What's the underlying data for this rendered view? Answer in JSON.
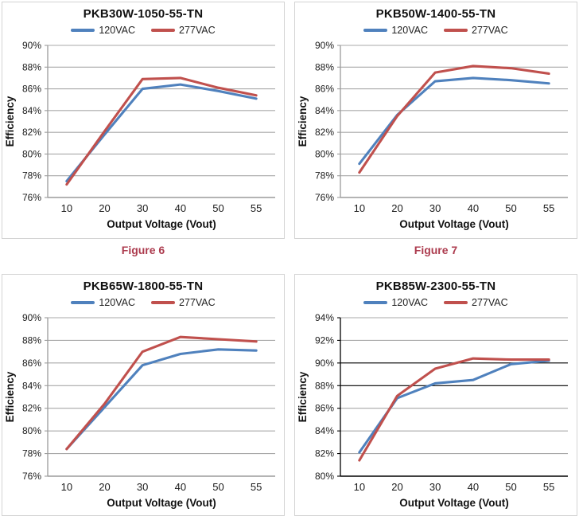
{
  "caption_color": "#AC3B4E",
  "figure_captions": [
    {
      "label": "Figure 6"
    },
    {
      "label": "Figure 7"
    }
  ],
  "chart_data": [
    {
      "type": "line",
      "title": "PKB30W-1050-55-TN",
      "xlabel": "Output Voltage (Vout)",
      "ylabel": "Efficiency",
      "categories": [
        "10",
        "20",
        "30",
        "40",
        "50",
        "55"
      ],
      "ylim": [
        76,
        90
      ],
      "ytick_step": 2,
      "ytick_suffix": "%",
      "grid": "horizontal",
      "legend_position": "top",
      "grid_color": "#A8A8A8",
      "axis_color": "#9C9C9C",
      "emphasized_gridlines": [],
      "emphasis_color": "#000000",
      "series": [
        {
          "name": "120VAC",
          "color": "#4F81BD",
          "values": [
            77.5,
            81.8,
            86.0,
            86.4,
            85.8,
            85.1
          ]
        },
        {
          "name": "277VAC",
          "color": "#C0504D",
          "values": [
            77.2,
            82.1,
            86.9,
            87.0,
            86.1,
            85.4
          ]
        }
      ]
    },
    {
      "type": "line",
      "title": "PKB50W-1400-55-TN",
      "xlabel": "Output Voltage (Vout)",
      "ylabel": "Efficiency",
      "categories": [
        "10",
        "20",
        "30",
        "40",
        "50",
        "55"
      ],
      "ylim": [
        76,
        90
      ],
      "ytick_step": 2,
      "ytick_suffix": "%",
      "grid": "horizontal",
      "legend_position": "top",
      "grid_color": "#A8A8A8",
      "axis_color": "#9C9C9C",
      "emphasized_gridlines": [],
      "emphasis_color": "#000000",
      "series": [
        {
          "name": "120VAC",
          "color": "#4F81BD",
          "values": [
            79.1,
            83.6,
            86.7,
            87.0,
            86.8,
            86.5
          ]
        },
        {
          "name": "277VAC",
          "color": "#C0504D",
          "values": [
            78.3,
            83.5,
            87.5,
            88.1,
            87.9,
            87.4
          ]
        }
      ]
    },
    {
      "type": "line",
      "title": "PKB65W-1800-55-TN",
      "xlabel": "Output Voltage (Vout)",
      "ylabel": "Efficiency",
      "categories": [
        "10",
        "20",
        "30",
        "40",
        "50",
        "55"
      ],
      "ylim": [
        76,
        90
      ],
      "ytick_step": 2,
      "ytick_suffix": "%",
      "grid": "horizontal",
      "legend_position": "top",
      "grid_color": "#A8A8A8",
      "axis_color": "#9C9C9C",
      "emphasized_gridlines": [],
      "emphasis_color": "#000000",
      "series": [
        {
          "name": "120VAC",
          "color": "#4F81BD",
          "values": [
            78.4,
            82.1,
            85.8,
            86.8,
            87.2,
            87.1
          ]
        },
        {
          "name": "277VAC",
          "color": "#C0504D",
          "values": [
            78.4,
            82.4,
            87.0,
            88.3,
            88.1,
            87.9
          ]
        }
      ]
    },
    {
      "type": "line",
      "title": "PKB85W-2300-55-TN",
      "xlabel": "Output Voltage (Vout)",
      "ylabel": "Efficiency",
      "categories": [
        "10",
        "20",
        "30",
        "40",
        "50",
        "55"
      ],
      "ylim": [
        80,
        94
      ],
      "ytick_step": 2,
      "ytick_suffix": "%",
      "grid": "horizontal",
      "legend_position": "top",
      "grid_color": "#A8A8A8",
      "axis_color": "#000000",
      "emphasized_gridlines": [
        88,
        90
      ],
      "emphasis_color": "#000000",
      "series": [
        {
          "name": "120VAC",
          "color": "#4F81BD",
          "values": [
            82.1,
            86.9,
            88.2,
            88.5,
            89.9,
            90.2
          ]
        },
        {
          "name": "277VAC",
          "color": "#C0504D",
          "values": [
            81.4,
            87.1,
            89.5,
            90.4,
            90.3,
            90.3
          ]
        }
      ]
    }
  ]
}
